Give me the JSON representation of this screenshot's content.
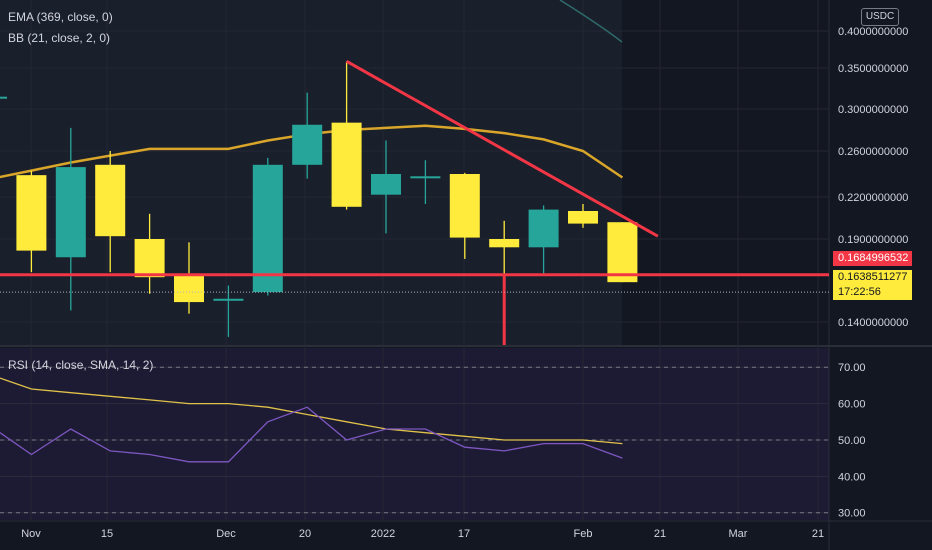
{
  "legend": {
    "ema": "EMA (369, close, 0)",
    "bb": "BB (21, close, 2, 0)",
    "rsi": "RSI (14, close, SMA, 14, 2)"
  },
  "currency": "USDC",
  "price_tags": {
    "resistance_price": "0.1684996532",
    "last_price": "0.1638511277",
    "countdown": "17:22:56"
  },
  "colors": {
    "background": "#131722",
    "bull": "#26a69a",
    "bear": "#ffeb3b",
    "ma": "#d9a62a",
    "annotation": "#f23645",
    "rsi_line": "#7e57c2",
    "rsi_ma": "#e0c14a"
  },
  "chart_data": [
    {
      "type": "candlestick",
      "y_ticks": [
        "0.4000000000",
        "0.3500000000",
        "0.3000000000",
        "0.2600000000",
        "0.2200000000",
        "0.1900000000",
        "0.1400000000"
      ],
      "x_ticks": [
        "Nov",
        "15",
        "Dec",
        "20",
        "2022",
        "17",
        "Feb",
        "21",
        "Mar",
        "21"
      ],
      "candles": [
        {
          "o": 0.315,
          "h": 0.318,
          "l": 0.168,
          "c": 0.315
        },
        {
          "o": 0.239,
          "h": 0.243,
          "l": 0.17,
          "c": 0.183
        },
        {
          "o": 0.179,
          "h": 0.282,
          "l": 0.147,
          "c": 0.246
        },
        {
          "o": 0.248,
          "h": 0.26,
          "l": 0.17,
          "c": 0.192
        },
        {
          "o": 0.19,
          "h": 0.208,
          "l": 0.157,
          "c": 0.167
        },
        {
          "o": 0.169,
          "h": 0.188,
          "l": 0.145,
          "c": 0.152
        },
        {
          "o": 0.154,
          "h": 0.162,
          "l": 0.131,
          "c": 0.154
        },
        {
          "o": 0.158,
          "h": 0.254,
          "l": 0.156,
          "c": 0.248
        },
        {
          "o": 0.248,
          "h": 0.32,
          "l": 0.236,
          "c": 0.285
        },
        {
          "o": 0.287,
          "h": 0.359,
          "l": 0.211,
          "c": 0.213
        },
        {
          "o": 0.222,
          "h": 0.27,
          "l": 0.194,
          "c": 0.24
        },
        {
          "o": 0.238,
          "h": 0.252,
          "l": 0.215,
          "c": 0.238
        },
        {
          "o": 0.24,
          "h": 0.241,
          "l": 0.178,
          "c": 0.191
        },
        {
          "o": 0.19,
          "h": 0.203,
          "l": 0.167,
          "c": 0.185
        },
        {
          "o": 0.185,
          "h": 0.214,
          "l": 0.168,
          "c": 0.211
        },
        {
          "o": 0.21,
          "h": 0.215,
          "l": 0.198,
          "c": 0.201
        },
        {
          "o": 0.202,
          "h": 0.202,
          "l": 0.164,
          "c": 0.164
        }
      ],
      "moving_average": [
        0.236,
        0.243,
        0.25,
        0.256,
        0.262,
        0.262,
        0.262,
        0.27,
        0.276,
        0.28,
        0.282,
        0.284,
        0.281,
        0.277,
        0.271,
        0.26,
        0.237
      ],
      "annotations": {
        "trend_line": {
          "from": {
            "candle": 9,
            "price": 0.359
          },
          "to": {
            "candle": 16.9,
            "price": 0.192
          }
        },
        "horizontal_line": {
          "price": 0.1685
        },
        "vertical_marker": {
          "candle": 13
        }
      }
    },
    {
      "type": "line",
      "title": "RSI (14, close, SMA, 14, 2)",
      "y_ticks": [
        "70.00",
        "60.00",
        "50.00",
        "40.00",
        "30.00"
      ],
      "ylim": [
        28,
        75
      ],
      "bands": {
        "upper": 70,
        "middle": 50,
        "lower": 30
      },
      "rsi": [
        52,
        46,
        53,
        47,
        46,
        44,
        44,
        55,
        59,
        50,
        53,
        53,
        48,
        47,
        49,
        49,
        45
      ],
      "rsi_ma": [
        67,
        64,
        63,
        62,
        61,
        60,
        60,
        59,
        57,
        55,
        53,
        52,
        51,
        50,
        50,
        50,
        49
      ]
    }
  ]
}
